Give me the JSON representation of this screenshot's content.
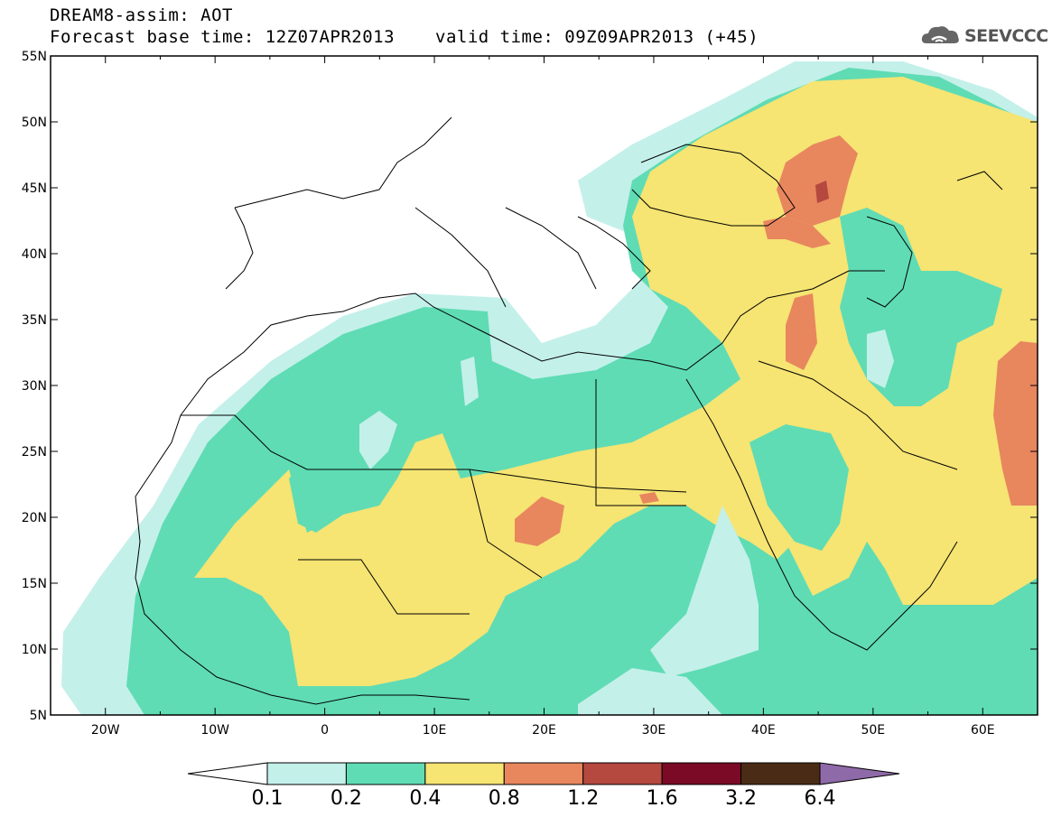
{
  "header": {
    "title": "DREAM8-assim: AOT",
    "base_time": "Forecast base time: 12Z07APR2013",
    "valid_time": "valid time: 09Z09APR2013 (+45)"
  },
  "logo": {
    "text": "SEEVCCC",
    "icon": "cloud-icon"
  },
  "map": {
    "lon_range": [
      -25,
      65
    ],
    "lat_range": [
      5,
      55
    ],
    "lon_ticks": [
      "20W",
      "10W",
      "0",
      "10E",
      "20E",
      "30E",
      "40E",
      "50E",
      "60E"
    ],
    "lat_ticks": [
      "55N",
      "50N",
      "45N",
      "40N",
      "35N",
      "30N",
      "25N",
      "20N",
      "15N",
      "10N",
      "5N"
    ]
  },
  "colorbar": {
    "labels": [
      "0.1",
      "0.2",
      "0.4",
      "0.8",
      "1.2",
      "1.6",
      "3.2",
      "6.4"
    ],
    "colors": [
      "#c4f0ea",
      "#5fdcb4",
      "#f6e473",
      "#e8865e",
      "#b5483f",
      "#7a0a26",
      "#4a2c16",
      "#8f6aa8"
    ]
  }
}
